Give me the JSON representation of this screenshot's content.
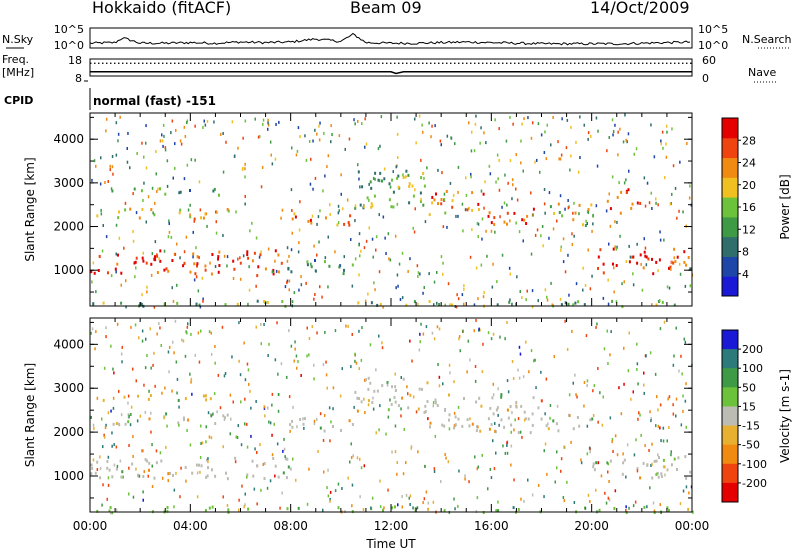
{
  "header": {
    "title": "Hokkaido (fitACF)",
    "beam": "Beam 09",
    "date": "14/Oct/2009"
  },
  "left_labels": {
    "nsky": "N.Sky",
    "freq": "Freq.",
    "freq_unit": "[MHz]",
    "cpid": "CPID"
  },
  "right_labels": {
    "nsearch": "N.Search",
    "nave": "Nave"
  },
  "cpid_value": "normal (fast) -151",
  "colors": {
    "power": [
      "#1a1ad6",
      "#1e46a8",
      "#2f6e6a",
      "#3f9a46",
      "#6cc23a",
      "#f0c020",
      "#f08a10",
      "#f04410",
      "#e40000"
    ],
    "velocity": [
      "#1a1ad6",
      "#2d7a7a",
      "#3f9a46",
      "#6cc23a",
      "#bcbcb4",
      "#e8b030",
      "#f08a10",
      "#f04410",
      "#e40000"
    ]
  },
  "chart_data": [
    {
      "type": "line",
      "name": "sky-noise-panel",
      "left_axis": {
        "label": "N.Sky",
        "ticks": [
          "10^5",
          "10^0"
        ]
      },
      "right_axis": {
        "label": "N.Search",
        "ticks": [
          "10^5",
          "10^0"
        ]
      },
      "x": [
        0,
        1,
        1.3,
        2,
        3,
        4,
        5,
        6,
        7,
        8,
        9,
        10,
        10.5,
        11,
        12,
        13,
        14,
        15,
        16,
        17,
        18,
        19,
        20,
        21,
        22,
        23,
        24
      ],
      "series": [
        {
          "values": [
            0.3,
            0.4,
            1.2,
            0.3,
            0.3,
            0.4,
            0.3,
            0.5,
            0.4,
            0.5,
            1.0,
            0.6,
            1.8,
            0.4,
            0.3,
            0.3,
            0.4,
            0.5,
            0.4,
            0.3,
            0.2,
            0.2,
            0.2,
            0.2,
            0.3,
            0.4,
            0.5
          ]
        }
      ]
    },
    {
      "type": "line",
      "name": "frequency-panel",
      "left_axis": {
        "label": "Freq.",
        "unit": "[MHz]",
        "ticks": [
          "18",
          "8"
        ]
      },
      "right_axis": {
        "label": "Nave",
        "ticks": [
          "60",
          "0"
        ]
      },
      "x": [
        0,
        12,
        12.2,
        12.5,
        24
      ],
      "series": [
        {
          "values": [
            10.5,
            10.5,
            9.5,
            10.5,
            10.5
          ]
        },
        {
          "values": [
            45,
            45,
            45,
            45,
            45
          ]
        }
      ]
    },
    {
      "type": "heatmap",
      "name": "power-panel",
      "ylabel": "Slant Range [km]",
      "yticks": [
        1000,
        2000,
        3000,
        4000
      ],
      "ylim": [
        180,
        4600
      ],
      "xlim": [
        0,
        24
      ],
      "colorbar": {
        "label": "Power [dB]",
        "ticks": [
          4,
          8,
          12,
          16,
          20,
          24,
          28
        ],
        "range": [
          0,
          32
        ]
      },
      "regions": [
        {
          "t0": 0,
          "t1": 2.6,
          "r0": 950,
          "r1": 1450,
          "level": 30
        },
        {
          "t0": 2.6,
          "t1": 7.8,
          "r0": 900,
          "r1": 1500,
          "level": 29
        },
        {
          "t0": 7.8,
          "t1": 10.5,
          "r0": 950,
          "r1": 1300,
          "level": 12
        },
        {
          "t0": 0.2,
          "t1": 5.5,
          "r0": 2200,
          "r1": 2450,
          "level": 20
        },
        {
          "t0": 0.2,
          "t1": 5.5,
          "r0": 2750,
          "r1": 2900,
          "level": 10
        },
        {
          "t0": 7.8,
          "t1": 10.5,
          "r0": 2050,
          "r1": 2350,
          "level": 24
        },
        {
          "t0": 10.5,
          "t1": 13.5,
          "r0": 2450,
          "r1": 3400,
          "level": 14
        },
        {
          "t0": 13.5,
          "t1": 15.8,
          "r0": 2300,
          "r1": 2900,
          "level": 24
        },
        {
          "t0": 15.8,
          "t1": 18.2,
          "r0": 2000,
          "r1": 2450,
          "level": 29
        },
        {
          "t0": 18.2,
          "t1": 20,
          "r0": 2050,
          "r1": 2550,
          "level": 18
        },
        {
          "t0": 20,
          "t1": 24,
          "r0": 950,
          "r1": 1550,
          "level": 30
        },
        {
          "t0": 20.6,
          "t1": 22,
          "r0": 2300,
          "r1": 2900,
          "level": 28
        },
        {
          "t0": 0,
          "t1": 24,
          "r0": 200,
          "r1": 330,
          "level": 14
        }
      ]
    },
    {
      "type": "heatmap",
      "name": "velocity-panel",
      "ylabel": "Slant Range [km]",
      "yticks": [
        1000,
        2000,
        3000,
        4000
      ],
      "ylim": [
        180,
        4600
      ],
      "xlim": [
        0,
        24
      ],
      "xticks": [
        "00:00",
        "04:00",
        "08:00",
        "12:00",
        "16:00",
        "20:00",
        "00:00"
      ],
      "xlabel": "Time UT",
      "colorbar": {
        "label": "Velocity [m s-1]",
        "ticks": [
          200,
          100,
          50,
          15,
          -15,
          -50,
          -100,
          -200
        ],
        "range": [
          -250,
          250
        ]
      },
      "regions": [
        {
          "t0": 0,
          "t1": 8,
          "r0": 950,
          "r1": 1450,
          "level": 0
        },
        {
          "t0": 0.2,
          "t1": 5.5,
          "r0": 2200,
          "r1": 2450,
          "level": 0
        },
        {
          "t0": 0.2,
          "t1": 5.5,
          "r0": 2750,
          "r1": 2900,
          "level": -40
        },
        {
          "t0": 7.8,
          "t1": 10.5,
          "r0": 2050,
          "r1": 2350,
          "level": 0
        },
        {
          "t0": 10.5,
          "t1": 13.5,
          "r0": 2450,
          "r1": 3300,
          "level": 0
        },
        {
          "t0": 13.5,
          "t1": 18.2,
          "r0": 2000,
          "r1": 2900,
          "level": 0
        },
        {
          "t0": 18.2,
          "t1": 20,
          "r0": 2050,
          "r1": 2450,
          "level": 0
        },
        {
          "t0": 20,
          "t1": 24,
          "r0": 950,
          "r1": 1500,
          "level": 0
        },
        {
          "t0": 0,
          "t1": 24,
          "r0": 200,
          "r1": 330,
          "level": 40
        }
      ]
    }
  ]
}
